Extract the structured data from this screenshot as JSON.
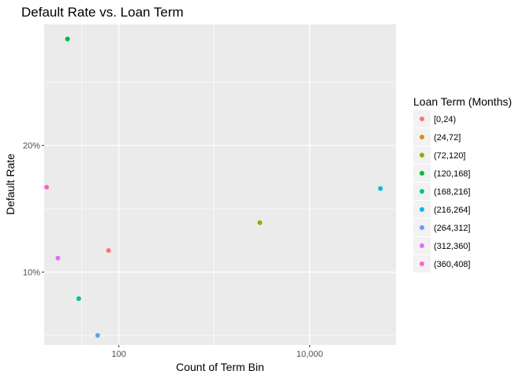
{
  "chart_data": {
    "type": "scatter",
    "title": "Default Rate vs. Loan Term",
    "xlabel": "Count of Term Bin",
    "ylabel": "Default Rate",
    "x_scale": "log10",
    "y_format": "percent",
    "xlim": [
      16.5,
      80000
    ],
    "ylim": [
      0.0425,
      0.2955
    ],
    "x_ticks": [
      {
        "value": 100,
        "label": "100"
      },
      {
        "value": 10000,
        "label": "10,000"
      }
    ],
    "y_ticks": [
      {
        "value": 0.1,
        "label": "10%"
      },
      {
        "value": 0.2,
        "label": "20%"
      }
    ],
    "grid": true,
    "legend": {
      "title": "Loan Term (Months)",
      "position": "right"
    },
    "series": [
      {
        "name": "[0,24)",
        "color": "#F8766D",
        "points": [
          {
            "x": 78,
            "y": 0.117
          }
        ]
      },
      {
        "name": "(24,72]",
        "color": "#D39200",
        "points": []
      },
      {
        "name": "(72,120]",
        "color": "#93AA00",
        "points": [
          {
            "x": 3000,
            "y": 0.139
          }
        ]
      },
      {
        "name": "(120,168]",
        "color": "#00BA38",
        "points": [
          {
            "x": 29,
            "y": 0.284
          }
        ]
      },
      {
        "name": "(168,216]",
        "color": "#00C19F",
        "points": [
          {
            "x": 38,
            "y": 0.079
          }
        ]
      },
      {
        "name": "(216,264]",
        "color": "#00B9E3",
        "points": [
          {
            "x": 55000,
            "y": 0.166
          }
        ]
      },
      {
        "name": "(264,312]",
        "color": "#619CFF",
        "points": [
          {
            "x": 60,
            "y": 0.05
          }
        ]
      },
      {
        "name": "(312,360]",
        "color": "#DB72FB",
        "points": [
          {
            "x": 23,
            "y": 0.111
          }
        ]
      },
      {
        "name": "(360,408]",
        "color": "#FF61C3",
        "points": [
          {
            "x": 17.5,
            "y": 0.167
          }
        ]
      }
    ]
  }
}
